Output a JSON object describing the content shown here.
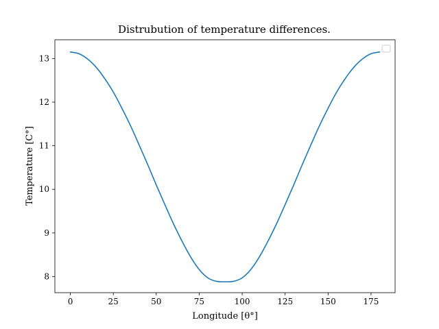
{
  "chart_data": {
    "type": "line",
    "title": "Distrubution of temperature differences.",
    "xlabel": "Longitude [θ°]",
    "ylabel": "Temperature [C°]",
    "xlim": [
      -9,
      189
    ],
    "ylim": [
      7.63,
      13.43
    ],
    "xticks": [
      0,
      25,
      50,
      75,
      100,
      125,
      150,
      175
    ],
    "yticks": [
      8,
      9,
      10,
      11,
      12,
      13
    ],
    "grid": false,
    "legend": {
      "placement": "top-right",
      "entries": []
    },
    "colors": {
      "series": "#1f77b4"
    },
    "series": [
      {
        "x": [
          0,
          5,
          10,
          15,
          20,
          25,
          30,
          35,
          40,
          45,
          50,
          55,
          60,
          65,
          70,
          75,
          80,
          85,
          90,
          95,
          100,
          105,
          110,
          115,
          120,
          125,
          130,
          135,
          140,
          145,
          150,
          155,
          160,
          165,
          170,
          175,
          180
        ],
        "y": [
          13.15,
          13.11,
          12.99,
          12.8,
          12.54,
          12.23,
          11.86,
          11.46,
          11.02,
          10.57,
          10.1,
          9.65,
          9.21,
          8.81,
          8.45,
          8.16,
          7.97,
          7.89,
          7.88,
          7.89,
          7.97,
          8.16,
          8.45,
          8.81,
          9.21,
          9.65,
          10.1,
          10.57,
          11.02,
          11.46,
          11.86,
          12.23,
          12.54,
          12.8,
          12.99,
          13.11,
          13.15
        ]
      }
    ]
  }
}
